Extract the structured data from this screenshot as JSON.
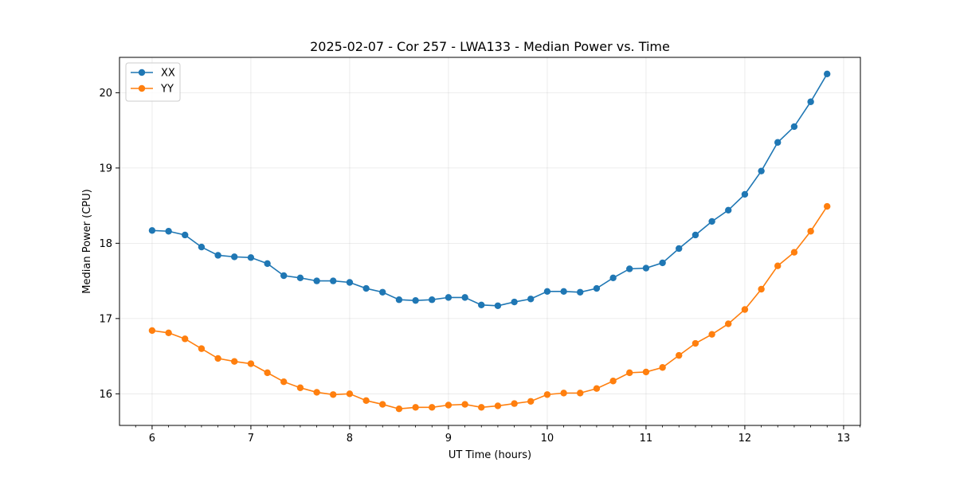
{
  "chart_data": {
    "type": "line",
    "title": "2025-02-07 - Cor 257 - LWA133 - Median Power vs. Time",
    "xlabel": "UT Time (hours)",
    "ylabel": "Median Power (CPU)",
    "xlim": [
      5.67,
      13.17
    ],
    "ylim": [
      15.58,
      20.47
    ],
    "xticks": [
      6,
      7,
      8,
      9,
      10,
      11,
      12,
      13
    ],
    "yticks": [
      16,
      17,
      18,
      19,
      20
    ],
    "grid": true,
    "legend_position": "top-left",
    "x": [
      6.0,
      6.167,
      6.333,
      6.5,
      6.667,
      6.833,
      7.0,
      7.167,
      7.333,
      7.5,
      7.667,
      7.833,
      8.0,
      8.167,
      8.333,
      8.5,
      8.667,
      8.833,
      9.0,
      9.167,
      9.333,
      9.5,
      9.667,
      9.833,
      10.0,
      10.167,
      10.333,
      10.5,
      10.667,
      10.833,
      11.0,
      11.167,
      11.333,
      11.5,
      11.667,
      11.833,
      12.0,
      12.167,
      12.333,
      12.5,
      12.667,
      12.833
    ],
    "series": [
      {
        "name": "XX",
        "color": "#1f77b4",
        "values": [
          18.17,
          18.16,
          18.11,
          17.95,
          17.84,
          17.82,
          17.81,
          17.73,
          17.57,
          17.54,
          17.5,
          17.5,
          17.48,
          17.4,
          17.35,
          17.25,
          17.24,
          17.25,
          17.28,
          17.28,
          17.18,
          17.17,
          17.22,
          17.26,
          17.36,
          17.36,
          17.35,
          17.4,
          17.54,
          17.66,
          17.67,
          17.74,
          17.93,
          18.11,
          18.29,
          18.44,
          18.65,
          18.96,
          19.34,
          19.55,
          19.88,
          20.25
        ]
      },
      {
        "name": "YY",
        "color": "#ff7f0e",
        "values": [
          16.84,
          16.81,
          16.73,
          16.6,
          16.47,
          16.43,
          16.4,
          16.28,
          16.16,
          16.08,
          16.02,
          15.99,
          16.0,
          15.91,
          15.86,
          15.8,
          15.82,
          15.82,
          15.85,
          15.86,
          15.82,
          15.84,
          15.87,
          15.9,
          15.99,
          16.01,
          16.01,
          16.07,
          16.17,
          16.28,
          16.29,
          16.35,
          16.51,
          16.67,
          16.79,
          16.93,
          17.12,
          17.39,
          17.7,
          17.88,
          18.16,
          18.49
        ]
      }
    ]
  }
}
